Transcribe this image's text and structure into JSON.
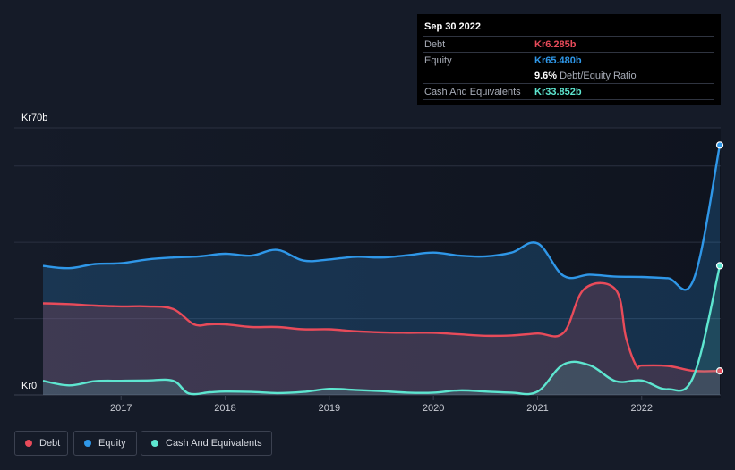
{
  "tooltip": {
    "date": "Sep 30 2022",
    "rows": [
      {
        "label": "Debt",
        "value": "Kr6.285b",
        "color": "#e84b5a"
      },
      {
        "label": "Equity",
        "value": "Kr65.480b",
        "color": "#2f97e8"
      },
      {
        "label": "",
        "value": "9.6%",
        "suffix": "Debt/Equity Ratio",
        "color": "#ffffff"
      },
      {
        "label": "Cash And Equivalents",
        "value": "Kr33.852b",
        "color": "#5ee6d0"
      }
    ]
  },
  "colors": {
    "background": "#151b28",
    "debt": "#e84b5a",
    "equity": "#2f97e8",
    "cash": "#5ee6d0"
  },
  "chart_data": {
    "type": "area",
    "ylabel_top": "Kr70b",
    "ylabel_bottom": "Kr0",
    "ylim": [
      0,
      70
    ],
    "xlim": [
      2016.25,
      2022.75
    ],
    "x_ticks": [
      "2017",
      "2018",
      "2019",
      "2020",
      "2021",
      "2022"
    ],
    "grid": true,
    "legend_position": "bottom-left",
    "series": [
      {
        "name": "Debt",
        "color": "#e84b5a",
        "points": [
          [
            2016.25,
            24.0
          ],
          [
            2016.5,
            23.8
          ],
          [
            2016.75,
            23.4
          ],
          [
            2017.0,
            23.2
          ],
          [
            2017.25,
            23.2
          ],
          [
            2017.5,
            22.5
          ],
          [
            2017.7,
            18.5
          ],
          [
            2017.85,
            18.5
          ],
          [
            2018.0,
            18.5
          ],
          [
            2018.25,
            17.8
          ],
          [
            2018.5,
            17.8
          ],
          [
            2018.75,
            17.2
          ],
          [
            2019.0,
            17.2
          ],
          [
            2019.25,
            16.7
          ],
          [
            2019.5,
            16.4
          ],
          [
            2019.75,
            16.3
          ],
          [
            2020.0,
            16.3
          ],
          [
            2020.25,
            15.9
          ],
          [
            2020.5,
            15.5
          ],
          [
            2020.75,
            15.6
          ],
          [
            2021.0,
            16.1
          ],
          [
            2021.25,
            16.3
          ],
          [
            2021.45,
            27.8
          ],
          [
            2021.75,
            27.6
          ],
          [
            2021.85,
            15.0
          ],
          [
            2021.95,
            7.5
          ],
          [
            2022.0,
            7.7
          ],
          [
            2022.25,
            7.6
          ],
          [
            2022.5,
            6.3
          ],
          [
            2022.75,
            6.285
          ]
        ]
      },
      {
        "name": "Equity",
        "color": "#2f97e8",
        "points": [
          [
            2016.25,
            33.8
          ],
          [
            2016.5,
            33.2
          ],
          [
            2016.75,
            34.3
          ],
          [
            2017.0,
            34.5
          ],
          [
            2017.25,
            35.5
          ],
          [
            2017.5,
            36.0
          ],
          [
            2017.75,
            36.3
          ],
          [
            2018.0,
            37.0
          ],
          [
            2018.25,
            36.5
          ],
          [
            2018.5,
            38.0
          ],
          [
            2018.75,
            35.2
          ],
          [
            2019.0,
            35.5
          ],
          [
            2019.25,
            36.2
          ],
          [
            2019.5,
            36.0
          ],
          [
            2019.75,
            36.6
          ],
          [
            2020.0,
            37.3
          ],
          [
            2020.25,
            36.5
          ],
          [
            2020.5,
            36.3
          ],
          [
            2020.75,
            37.3
          ],
          [
            2021.0,
            39.7
          ],
          [
            2021.25,
            31.2
          ],
          [
            2021.5,
            31.5
          ],
          [
            2021.75,
            31.0
          ],
          [
            2022.0,
            30.9
          ],
          [
            2022.25,
            30.6
          ],
          [
            2022.5,
            30.3
          ],
          [
            2022.75,
            65.48
          ]
        ]
      },
      {
        "name": "Cash And Equivalents",
        "color": "#5ee6d0",
        "points": [
          [
            2016.25,
            3.7
          ],
          [
            2016.5,
            2.5
          ],
          [
            2016.75,
            3.6
          ],
          [
            2017.0,
            3.7
          ],
          [
            2017.25,
            3.8
          ],
          [
            2017.5,
            3.7
          ],
          [
            2017.65,
            0.4
          ],
          [
            2017.85,
            0.7
          ],
          [
            2018.0,
            0.9
          ],
          [
            2018.25,
            0.8
          ],
          [
            2018.5,
            0.5
          ],
          [
            2018.75,
            0.8
          ],
          [
            2019.0,
            1.6
          ],
          [
            2019.25,
            1.3
          ],
          [
            2019.5,
            1.0
          ],
          [
            2019.75,
            0.6
          ],
          [
            2020.0,
            0.6
          ],
          [
            2020.25,
            1.2
          ],
          [
            2020.5,
            0.9
          ],
          [
            2020.75,
            0.6
          ],
          [
            2021.0,
            0.9
          ],
          [
            2021.25,
            8.0
          ],
          [
            2021.5,
            7.8
          ],
          [
            2021.75,
            3.6
          ],
          [
            2022.0,
            3.8
          ],
          [
            2022.25,
            1.5
          ],
          [
            2022.5,
            5.0
          ],
          [
            2022.75,
            33.852
          ]
        ]
      }
    ]
  }
}
